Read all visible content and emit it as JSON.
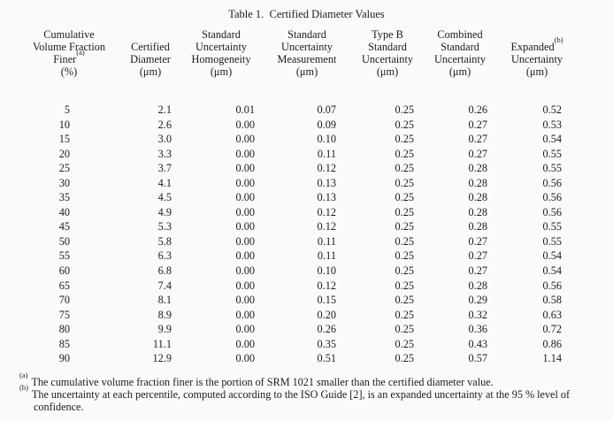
{
  "title": "Table 1.  Certified Diameter Values",
  "table": {
    "header": {
      "c1": {
        "l1": "Cumulative",
        "l2": "Volume Fraction",
        "l3": "Finer",
        "sup": "(a)",
        "unit": "(%)"
      },
      "c2": {
        "l1": "Certified",
        "l2": "Diameter",
        "unit": "(μm)"
      },
      "c3": {
        "l1": "Standard",
        "l2": "Uncertainty",
        "l3": "Homogeneity",
        "unit": "(μm)"
      },
      "c4": {
        "l1": "Standard",
        "l2": "Uncertainty",
        "l3": "Measurement",
        "unit": "(μm)"
      },
      "c5": {
        "l1": "Type B",
        "l2": "Standard",
        "l3": "Uncertainty",
        "unit": "(μm)"
      },
      "c6": {
        "l1": "Combined",
        "l2": "Standard",
        "l3": "Uncertainty",
        "unit": "(μm)"
      },
      "c7": {
        "l1": "Expanded",
        "sup": "(b)",
        "l2": "Uncertainty",
        "unit": "(μm)"
      }
    },
    "rows": [
      [
        "5",
        "2.1",
        "0.01",
        "0.07",
        "0.25",
        "0.26",
        "0.52"
      ],
      [
        "10",
        "2.6",
        "0.00",
        "0.09",
        "0.25",
        "0.27",
        "0.53"
      ],
      [
        "15",
        "3.0",
        "0.00",
        "0.10",
        "0.25",
        "0.27",
        "0.54"
      ],
      [
        "20",
        "3.3",
        "0.00",
        "0.11",
        "0.25",
        "0.27",
        "0.55"
      ],
      [
        "25",
        "3.7",
        "0.00",
        "0.12",
        "0.25",
        "0.28",
        "0.55"
      ],
      [
        "30",
        "4.1",
        "0.00",
        "0.13",
        "0.25",
        "0.28",
        "0.56"
      ],
      [
        "35",
        "4.5",
        "0.00",
        "0.13",
        "0.25",
        "0.28",
        "0.56"
      ],
      [
        "40",
        "4.9",
        "0.00",
        "0.12",
        "0.25",
        "0.28",
        "0.56"
      ],
      [
        "45",
        "5.3",
        "0.00",
        "0.12",
        "0.25",
        "0.28",
        "0.55"
      ],
      [
        "50",
        "5.8",
        "0.00",
        "0.11",
        "0.25",
        "0.27",
        "0.55"
      ],
      [
        "55",
        "6.3",
        "0.00",
        "0.11",
        "0.25",
        "0.27",
        "0.54"
      ],
      [
        "60",
        "6.8",
        "0.00",
        "0.10",
        "0.25",
        "0.27",
        "0.54"
      ],
      [
        "65",
        "7.4",
        "0.00",
        "0.12",
        "0.25",
        "0.28",
        "0.56"
      ],
      [
        "70",
        "8.1",
        "0.00",
        "0.15",
        "0.25",
        "0.29",
        "0.58"
      ],
      [
        "75",
        "8.9",
        "0.00",
        "0.20",
        "0.25",
        "0.32",
        "0.63"
      ],
      [
        "80",
        "9.9",
        "0.00",
        "0.26",
        "0.25",
        "0.36",
        "0.72"
      ],
      [
        "85",
        "11.1",
        "0.00",
        "0.35",
        "0.25",
        "0.43",
        "0.86"
      ],
      [
        "90",
        "12.9",
        "0.00",
        "0.51",
        "0.25",
        "0.57",
        "1.14"
      ]
    ]
  },
  "footnotes": [
    {
      "marker": "(a)",
      "text": "The cumulative volume fraction finer is the portion of SRM 1021 smaller than the certified diameter value."
    },
    {
      "marker": "(b)",
      "text": "The uncertainty at each percentile, computed according to the ISO Guide [2], is an expanded uncertainty at the 95 % level of confidence."
    }
  ],
  "colors": {
    "background": "#fafafa",
    "text": "#1c1c1c"
  }
}
